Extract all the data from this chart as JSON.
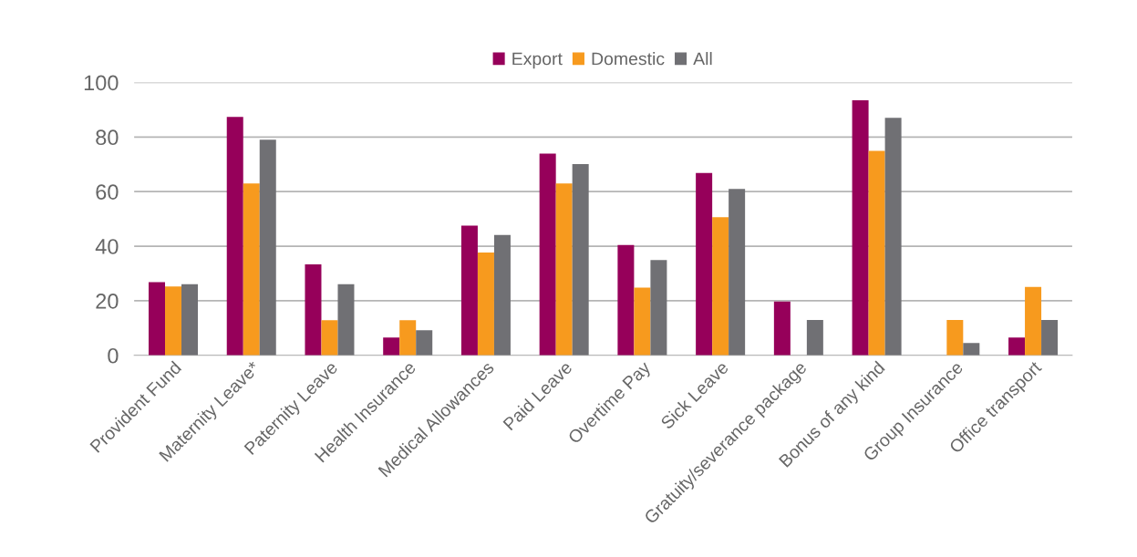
{
  "chart_data": {
    "type": "bar",
    "categories": [
      "Provident Fund",
      "Maternity Leave*",
      "Paternity Leave",
      "Health Insurance",
      "Medical Allowances",
      "Paid Leave",
      "Overtime Pay",
      "Sick Leave",
      "Gratuity/severance package",
      "Bonus of any kind",
      "Group Insurance",
      "Office transport"
    ],
    "series": [
      {
        "name": "Export",
        "color": "#96005a",
        "values": [
          26.8,
          87.4,
          33.3,
          6.5,
          47.5,
          73.9,
          40.4,
          66.8,
          19.7,
          93.5,
          null,
          6.5
        ]
      },
      {
        "name": "Domestic",
        "color": "#f79a1e",
        "values": [
          25.2,
          63.0,
          12.9,
          12.9,
          37.7,
          63.0,
          24.8,
          50.6,
          null,
          74.9,
          13.0,
          25.1
        ]
      },
      {
        "name": "All",
        "color": "#707074",
        "values": [
          26.1,
          79.0,
          26.1,
          9.2,
          44.1,
          70.1,
          34.9,
          61.0,
          13.0,
          87.0,
          4.5,
          13.0
        ]
      }
    ],
    "ylim": [
      0,
      100
    ],
    "yticks": [
      0,
      20,
      40,
      60,
      80,
      100
    ],
    "grid": "y",
    "legend": "top"
  }
}
